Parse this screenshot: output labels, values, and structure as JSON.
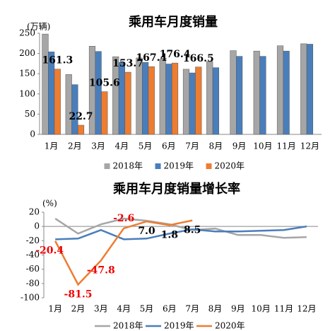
{
  "chart_data": [
    {
      "type": "bar",
      "title": "乘用车月度销量",
      "y_unit": "(万辆)",
      "categories": [
        "1月",
        "2月",
        "3月",
        "4月",
        "5月",
        "6月",
        "7月",
        "8月",
        "9月",
        "10月",
        "11月",
        "12月"
      ],
      "series": [
        {
          "name": "2018年",
          "color": "#a6a6a6",
          "values": [
            248,
            148,
            218,
            192,
            189,
            185,
            161,
            180,
            207,
            206,
            219,
            224
          ]
        },
        {
          "name": "2019年",
          "color": "#4a7ebb",
          "values": [
            204,
            123,
            205,
            178,
            178,
            174,
            152,
            165,
            193,
            193,
            206,
            223
          ]
        },
        {
          "name": "2020年",
          "color": "#ed7d31",
          "values": [
            161.3,
            22.7,
            105.6,
            153.7,
            167.4,
            176.4,
            166.5,
            null,
            null,
            null,
            null,
            null
          ]
        }
      ],
      "ylim": [
        0,
        250
      ],
      "yticks": [
        0,
        50,
        100,
        150,
        200,
        250
      ],
      "legend": "bottom"
    },
    {
      "type": "line",
      "title": "乘用车月度销量增长率",
      "y_unit": "(%)",
      "categories": [
        "1月",
        "2月",
        "3月",
        "4月",
        "5月",
        "6月",
        "7月",
        "8月",
        "9月",
        "10月",
        "11月",
        "12月"
      ],
      "series": [
        {
          "name": "2018年",
          "color": "#a6a6a6",
          "values": [
            11,
            -10,
            3,
            11,
            8,
            3,
            -5,
            -3,
            -12,
            -12,
            -16,
            -15
          ]
        },
        {
          "name": "2019年",
          "color": "#4a7ebb",
          "values": [
            -18,
            -17,
            -5,
            -18,
            -17,
            -10,
            -4,
            -7,
            -7,
            -6,
            -5,
            0
          ]
        },
        {
          "name": "2020年",
          "color": "#ed7d31",
          "values": [
            -20.4,
            -81.5,
            -47.8,
            -2.6,
            7,
            1.8,
            8.5,
            null,
            null,
            null,
            null,
            null
          ],
          "value_labels": [
            "-20.4",
            "-81.5",
            "-47.8",
            "-2.6",
            "7.0",
            "1.8",
            "8.5",
            null,
            null,
            null,
            null,
            null
          ]
        }
      ],
      "ylim": [
        -100,
        20
      ],
      "yticks": [
        -100,
        -80,
        -60,
        -40,
        -20,
        0,
        20
      ],
      "legend": "bottom"
    }
  ]
}
